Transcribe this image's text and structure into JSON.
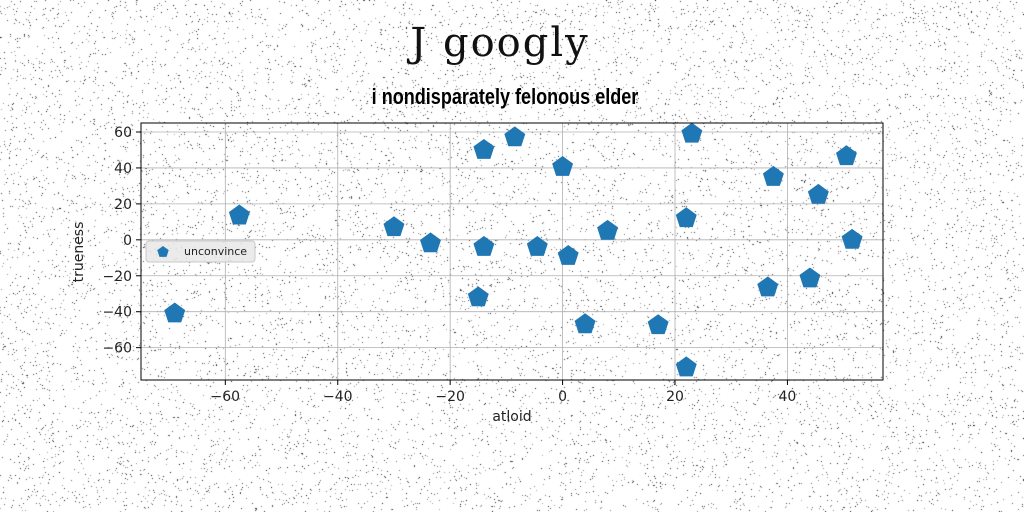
{
  "figure": {
    "suptitle": "J googly"
  },
  "chart_data": {
    "type": "scatter",
    "title": "i nondisparately felonous elder",
    "xlabel": "atloid",
    "ylabel": "trueness",
    "xlim": [
      -75,
      57
    ],
    "ylim": [
      -78,
      65
    ],
    "xticks": [
      -60,
      -40,
      -20,
      0,
      20,
      40
    ],
    "yticks": [
      -60,
      -40,
      -20,
      0,
      20,
      40,
      60
    ],
    "grid": true,
    "legend": {
      "position": "center-left"
    },
    "colors": {
      "series": "#1f77b4",
      "grid": "#b0b0b0",
      "axes": "#000000"
    },
    "marker": "pentagon",
    "series": [
      {
        "name": "unconvince",
        "points": [
          [
            -69,
            -41
          ],
          [
            -57.5,
            13.5
          ],
          [
            -30,
            7
          ],
          [
            -23.5,
            -2
          ],
          [
            -15,
            -32
          ],
          [
            -14,
            -4
          ],
          [
            -14,
            50
          ],
          [
            -8.5,
            57
          ],
          [
            -4.5,
            -4
          ],
          [
            0,
            40.5
          ],
          [
            1,
            -9
          ],
          [
            4,
            -47
          ],
          [
            8,
            5
          ],
          [
            17,
            -47.5
          ],
          [
            22,
            12
          ],
          [
            22,
            -71
          ],
          [
            23,
            59
          ],
          [
            36.5,
            -26.5
          ],
          [
            37.5,
            35
          ],
          [
            44,
            -21.5
          ],
          [
            45.5,
            25
          ],
          [
            50.5,
            46.5
          ],
          [
            51.5,
            0
          ]
        ]
      }
    ]
  }
}
